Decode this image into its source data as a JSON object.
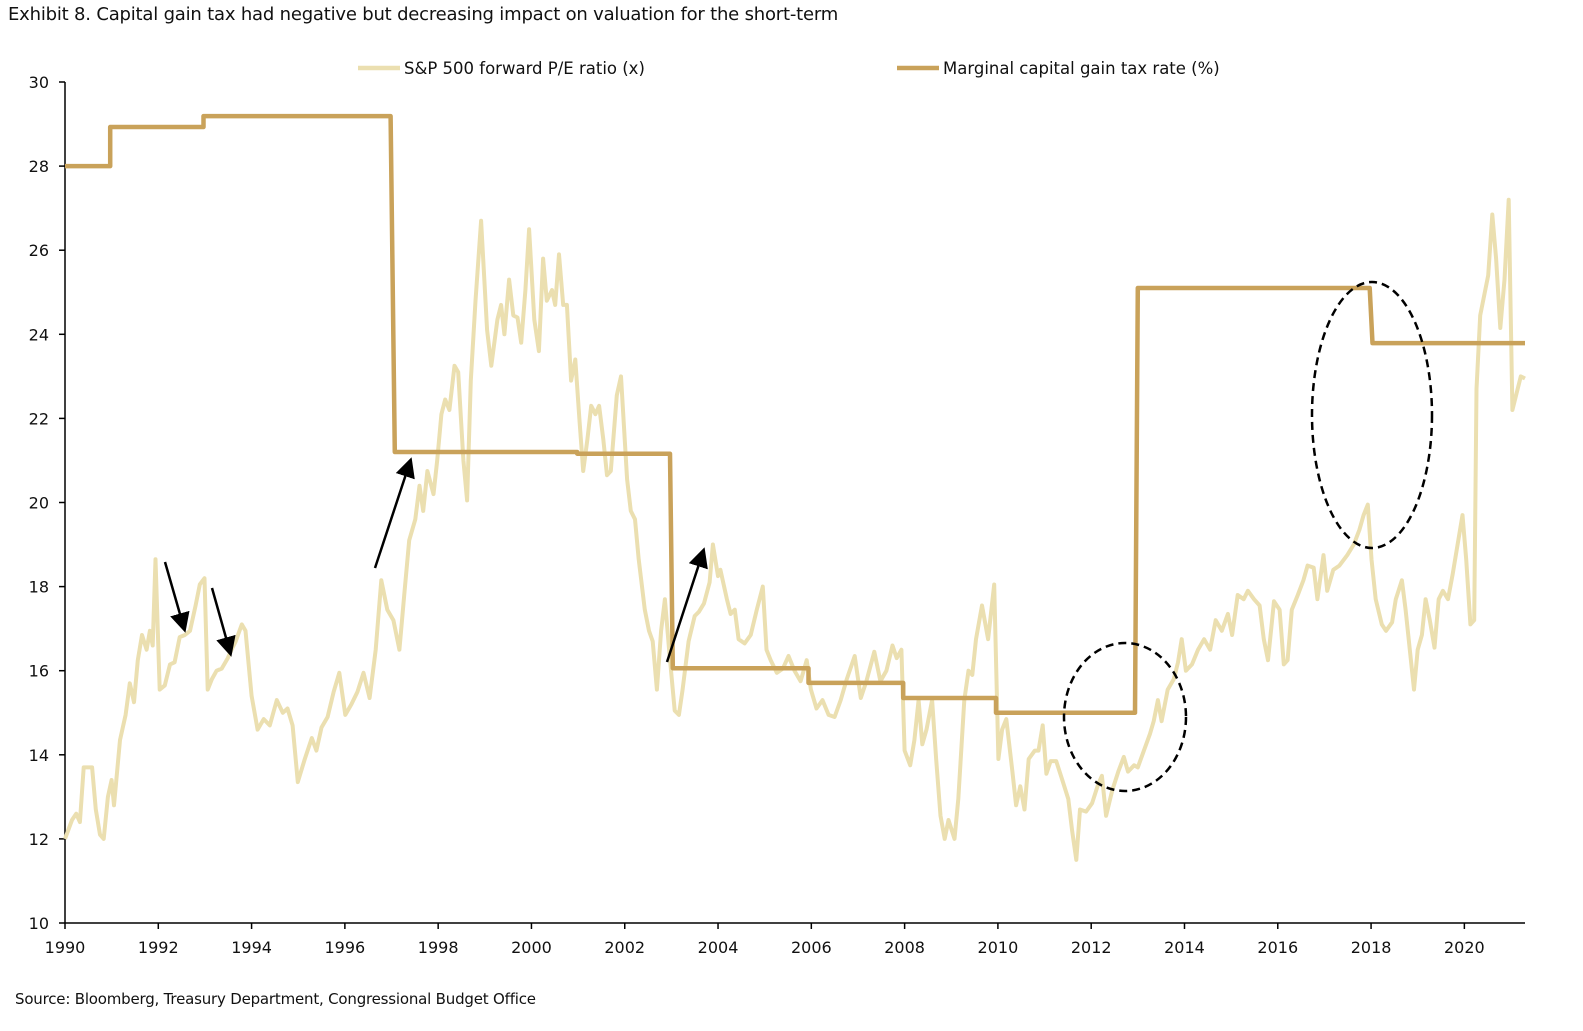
{
  "title": "Exhibit 8. Capital gain tax had negative but decreasing impact on valuation for the short-term",
  "source": "Source: Bloomberg, Treasury Department, Congressional Budget Office",
  "chart_data": {
    "type": "line",
    "title": "Exhibit 8. Capital gain tax had negative but decreasing impact on valuation for the short-term",
    "xlabel": "",
    "ylabel": "",
    "xlim": [
      1990,
      2021.3
    ],
    "ylim": [
      10,
      30
    ],
    "x_ticks": [
      "1990",
      "1992",
      "1994",
      "1996",
      "1998",
      "2000",
      "2002",
      "2004",
      "2006",
      "2008",
      "2010",
      "2012",
      "2014",
      "2016",
      "2018",
      "2020"
    ],
    "y_ticks": [
      "10",
      "12",
      "14",
      "16",
      "18",
      "20",
      "22",
      "24",
      "26",
      "28",
      "30"
    ],
    "grid": false,
    "legend_position": "top",
    "series": [
      {
        "name": "S&P 500 forward P/E ratio (x)",
        "color": "#ebdfb0",
        "x": [
          1990.0,
          1990.15,
          1990.24,
          1990.32,
          1990.4,
          1990.58,
          1990.66,
          1990.75,
          1990.83,
          1990.92,
          1991.0,
          1991.05,
          1991.18,
          1991.3,
          1991.39,
          1991.48,
          1991.56,
          1991.65,
          1991.75,
          1991.82,
          1991.88,
          1991.94,
          1992.03,
          1992.14,
          1992.25,
          1992.35,
          1992.46,
          1992.57,
          1992.68,
          1992.8,
          1992.89,
          1992.99,
          1993.06,
          1993.15,
          1993.25,
          1993.36,
          1993.49,
          1993.57,
          1993.66,
          1993.79,
          1993.87,
          1994.0,
          1994.13,
          1994.26,
          1994.39,
          1994.54,
          1994.67,
          1994.77,
          1994.88,
          1994.99,
          1995.14,
          1995.29,
          1995.39,
          1995.5,
          1995.63,
          1995.76,
          1995.88,
          1996.01,
          1996.14,
          1996.27,
          1996.4,
          1996.53,
          1996.66,
          1996.78,
          1996.91,
          1997.04,
          1997.17,
          1997.28,
          1997.38,
          1997.51,
          1997.6,
          1997.68,
          1997.77,
          1997.9,
          1997.98,
          1998.07,
          1998.15,
          1998.24,
          1998.35,
          1998.43,
          1998.54,
          1998.62,
          1998.7,
          1998.8,
          1998.92,
          1999.05,
          1999.14,
          1999.27,
          1999.35,
          1999.42,
          1999.52,
          1999.61,
          1999.7,
          1999.78,
          1999.87,
          1999.95,
          2000.06,
          2000.16,
          2000.25,
          2000.33,
          2000.44,
          2000.51,
          2000.59,
          2000.68,
          2000.76,
          2000.85,
          2000.94,
          2001.03,
          2001.11,
          2001.2,
          2001.28,
          2001.37,
          2001.45,
          2001.54,
          2001.62,
          2001.7,
          2001.83,
          2001.92,
          2002.05,
          2002.13,
          2002.22,
          2002.3,
          2002.43,
          2002.52,
          2002.6,
          2002.69,
          2002.78,
          2002.86,
          2002.95,
          2003.07,
          2003.16,
          2003.24,
          2003.37,
          2003.5,
          2003.59,
          2003.7,
          2003.82,
          2003.89,
          2004.0,
          2004.05,
          2004.19,
          2004.27,
          2004.36,
          2004.44,
          2004.57,
          2004.7,
          2004.83,
          2004.96,
          2005.04,
          2005.13,
          2005.26,
          2005.39,
          2005.51,
          2005.64,
          2005.77,
          2005.9,
          2005.99,
          2006.11,
          2006.24,
          2006.37,
          2006.5,
          2006.63,
          2006.76,
          2006.93,
          2007.06,
          2007.18,
          2007.35,
          2007.48,
          2007.61,
          2007.74,
          2007.83,
          2007.93,
          2008.0,
          2008.12,
          2008.21,
          2008.3,
          2008.38,
          2008.47,
          2008.59,
          2008.68,
          2008.77,
          2008.86,
          2008.94,
          2009.07,
          2009.15,
          2009.28,
          2009.37,
          2009.45,
          2009.53,
          2009.66,
          2009.79,
          2009.92,
          2010.01,
          2010.09,
          2010.18,
          2010.31,
          2010.39,
          2010.48,
          2010.57,
          2010.66,
          2010.79,
          2010.87,
          2010.96,
          2011.04,
          2011.13,
          2011.25,
          2011.38,
          2011.51,
          2011.59,
          2011.68,
          2011.76,
          2011.89,
          2012.02,
          2012.15,
          2012.23,
          2012.32,
          2012.45,
          2012.58,
          2012.7,
          2012.79,
          2012.92,
          2013.0,
          2013.13,
          2013.26,
          2013.34,
          2013.43,
          2013.51,
          2013.64,
          2013.77,
          2013.86,
          2013.94,
          2014.03,
          2014.16,
          2014.29,
          2014.42,
          2014.55,
          2014.67,
          2014.8,
          2014.93,
          2015.02,
          2015.14,
          2015.27,
          2015.36,
          2015.49,
          2015.61,
          2015.7,
          2015.79,
          2015.92,
          2016.04,
          2016.13,
          2016.21,
          2016.3,
          2016.43,
          2016.55,
          2016.64,
          2016.77,
          2016.85,
          2016.98,
          2017.06,
          2017.19,
          2017.32,
          2017.49,
          2017.63,
          2017.75,
          2017.84,
          2017.93,
          2018.01,
          2018.1,
          2018.23,
          2018.32,
          2018.45,
          2018.53,
          2018.66,
          2018.74,
          2018.83,
          2018.92,
          2019.0,
          2019.09,
          2019.17,
          2019.26,
          2019.36,
          2019.45,
          2019.54,
          2019.65,
          2019.75,
          2019.87,
          2019.96,
          2020.04,
          2020.13,
          2020.21,
          2020.26,
          2020.34,
          2020.43,
          2020.51,
          2020.6,
          2020.68,
          2020.77,
          2020.86,
          2020.95,
          2021.03,
          2021.12,
          2021.21,
          2021.3
        ],
        "y": [
          12.0,
          12.45,
          12.6,
          12.4,
          13.7,
          13.7,
          12.7,
          12.1,
          12.0,
          13.0,
          13.4,
          12.8,
          14.35,
          14.95,
          15.7,
          15.25,
          16.25,
          16.85,
          16.5,
          16.95,
          16.6,
          18.65,
          15.55,
          15.65,
          16.15,
          16.2,
          16.8,
          16.85,
          16.95,
          17.55,
          18.05,
          18.2,
          15.55,
          15.8,
          16.0,
          16.05,
          16.3,
          16.5,
          16.7,
          17.1,
          16.95,
          15.4,
          14.6,
          14.85,
          14.7,
          15.3,
          15.0,
          15.1,
          14.7,
          13.35,
          13.9,
          14.4,
          14.1,
          14.65,
          14.9,
          15.5,
          15.95,
          14.95,
          15.2,
          15.5,
          15.95,
          15.35,
          16.5,
          18.15,
          17.45,
          17.2,
          16.5,
          17.9,
          19.1,
          19.6,
          20.4,
          19.8,
          20.75,
          20.2,
          21.0,
          22.1,
          22.45,
          22.2,
          23.25,
          23.1,
          21.0,
          20.05,
          22.9,
          24.8,
          26.7,
          24.1,
          23.25,
          24.35,
          24.7,
          24.0,
          25.3,
          24.45,
          24.4,
          23.8,
          25.05,
          26.5,
          24.35,
          23.6,
          25.8,
          24.8,
          25.05,
          24.7,
          25.9,
          24.7,
          24.7,
          22.9,
          23.4,
          21.95,
          20.75,
          21.5,
          22.3,
          22.1,
          22.3,
          21.5,
          20.65,
          20.75,
          22.55,
          23.0,
          20.55,
          19.8,
          19.6,
          18.65,
          17.45,
          16.95,
          16.7,
          15.55,
          16.95,
          17.7,
          16.5,
          15.05,
          14.95,
          15.55,
          16.7,
          17.3,
          17.4,
          17.6,
          18.1,
          19.0,
          18.25,
          18.4,
          17.7,
          17.35,
          17.45,
          16.75,
          16.65,
          16.85,
          17.45,
          18.0,
          16.5,
          16.25,
          15.95,
          16.05,
          16.35,
          16.0,
          15.75,
          16.25,
          15.55,
          15.1,
          15.3,
          14.95,
          14.9,
          15.3,
          15.8,
          16.35,
          15.35,
          15.75,
          16.45,
          15.75,
          16.0,
          16.6,
          16.3,
          16.5,
          14.1,
          13.75,
          14.35,
          15.3,
          14.25,
          14.6,
          15.3,
          13.85,
          12.55,
          12.0,
          12.45,
          12.0,
          12.95,
          15.3,
          16.0,
          15.9,
          16.75,
          17.55,
          16.75,
          18.05,
          13.9,
          14.6,
          14.85,
          13.6,
          12.8,
          13.25,
          12.7,
          13.9,
          14.1,
          14.1,
          14.7,
          13.55,
          13.85,
          13.85,
          13.4,
          12.95,
          12.2,
          11.5,
          12.7,
          12.65,
          12.85,
          13.3,
          13.5,
          12.55,
          13.15,
          13.6,
          13.95,
          13.6,
          13.75,
          13.7,
          14.1,
          14.5,
          14.8,
          15.3,
          14.8,
          15.55,
          15.8,
          16.2,
          16.75,
          16.0,
          16.15,
          16.5,
          16.75,
          16.5,
          17.2,
          16.95,
          17.35,
          16.85,
          17.8,
          17.7,
          17.9,
          17.7,
          17.55,
          16.75,
          16.25,
          17.65,
          17.45,
          16.15,
          16.25,
          17.45,
          17.8,
          18.15,
          18.5,
          18.45,
          17.7,
          18.75,
          17.9,
          18.4,
          18.5,
          18.75,
          19.0,
          19.35,
          19.7,
          19.95,
          18.65,
          17.7,
          17.1,
          16.95,
          17.15,
          17.7,
          18.15,
          17.45,
          16.5,
          15.55,
          16.5,
          16.85,
          17.7,
          17.2,
          16.55,
          17.7,
          17.9,
          17.7,
          18.3,
          19.1,
          19.7,
          18.65,
          17.1,
          17.2,
          22.7,
          24.45,
          24.95,
          25.4,
          26.85,
          25.8,
          24.15,
          25.3,
          27.2,
          22.2,
          22.6,
          23.0,
          22.95
        ]
      },
      {
        "name": "Marginal capital gain tax rate (%)",
        "color": "#c9a25a",
        "step": true,
        "x": [
          1990.0,
          1990.97,
          1990.97,
          1992.97,
          1992.97,
          1996.98,
          1997.07,
          2000.98,
          2000.98,
          2002.97,
          2003.03,
          2005.94,
          2005.94,
          2007.97,
          2007.97,
          2009.96,
          2009.96,
          2012.94,
          2013.0,
          2017.97,
          2018.03,
          2021.3
        ],
        "y": [
          28.0,
          28.0,
          28.93,
          28.93,
          29.19,
          29.19,
          21.2,
          21.2,
          21.16,
          21.16,
          16.06,
          16.06,
          15.71,
          15.71,
          15.35,
          15.35,
          15.0,
          15.0,
          25.1,
          25.1,
          23.79,
          23.79
        ]
      }
    ]
  }
}
